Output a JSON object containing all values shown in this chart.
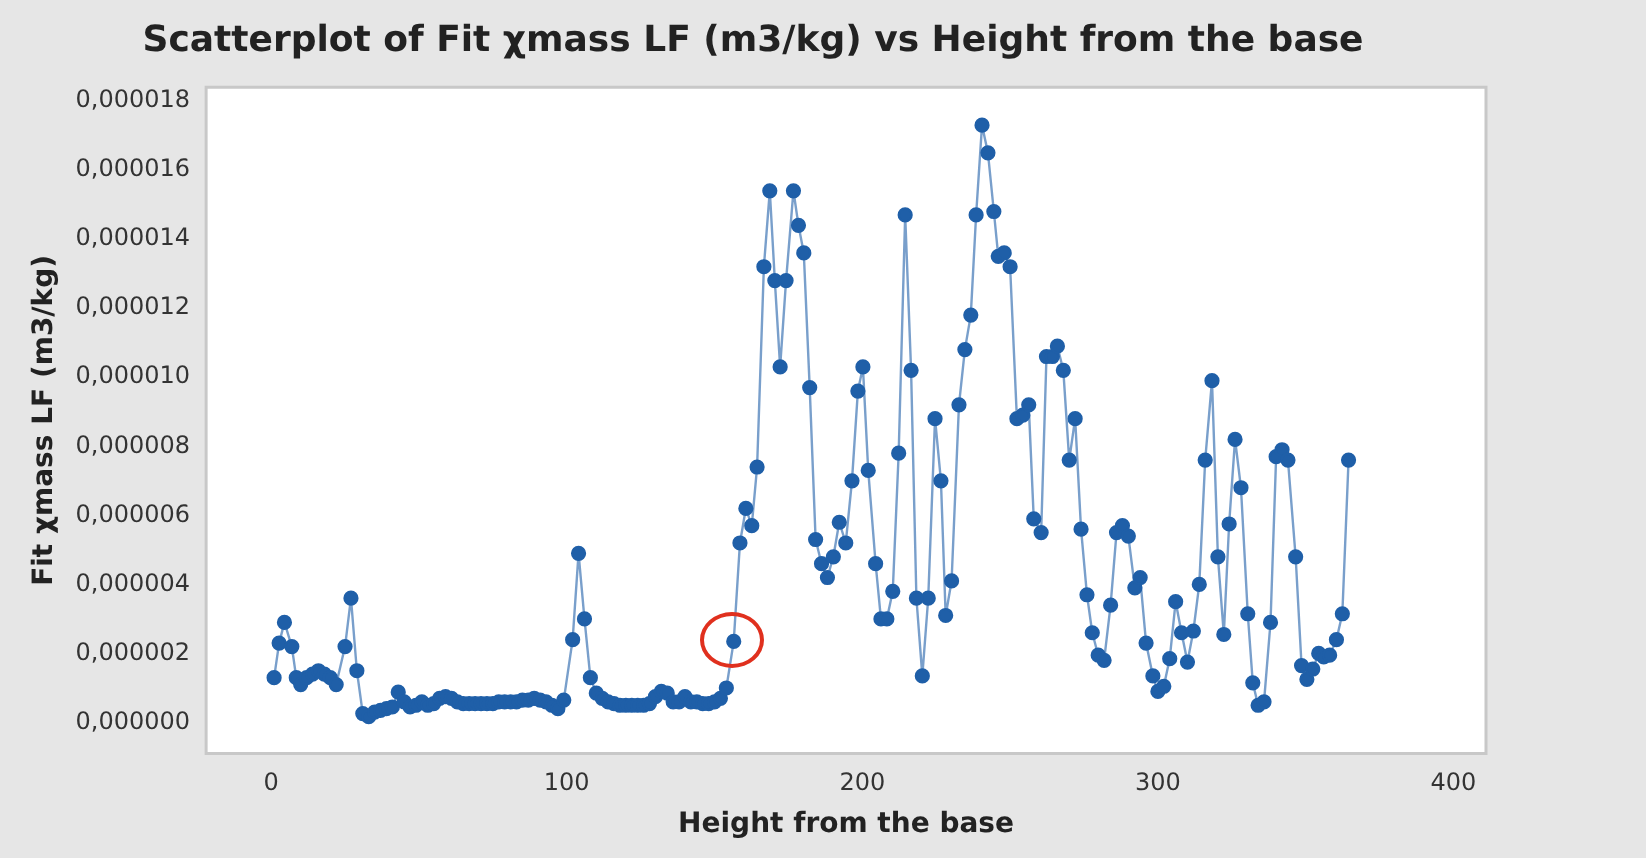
{
  "chart_data": {
    "type": "line",
    "title": "Scatterplot of Fit χmass LF (m3/kg) vs Height from the base",
    "xlabel": "Height from the base",
    "ylabel": "Fit χmass LF (m3/kg)",
    "marker": "circle",
    "line_style": "solid",
    "grid": false,
    "legend": false,
    "xlim": [
      -22,
      411
    ],
    "xticks": [
      0,
      100,
      200,
      300,
      400
    ],
    "ylim": [
      -9e-07,
      1.84e-05
    ],
    "yticks": [
      {
        "value": 0,
        "label": "0,000000"
      },
      {
        "value": 2e-06,
        "label": "0,000002"
      },
      {
        "value": 4e-06,
        "label": "0,000004"
      },
      {
        "value": 6e-06,
        "label": "0,000006"
      },
      {
        "value": 8e-06,
        "label": "0,000008"
      },
      {
        "value": 1e-05,
        "label": "0,000010"
      },
      {
        "value": 1.2e-05,
        "label": "0,000012"
      },
      {
        "value": 1.4e-05,
        "label": "0,000014"
      },
      {
        "value": 1.6e-05,
        "label": "0,000016"
      },
      {
        "value": 1.8e-05,
        "label": "0,000018"
      }
    ],
    "series": [
      {
        "color": "#1f5fa8",
        "x": [
          1,
          2.7,
          4.5,
          7,
          8.5,
          10,
          12,
          14,
          16,
          18,
          20,
          22,
          25,
          27,
          29,
          31,
          33,
          35,
          37,
          39,
          41,
          43,
          45,
          47,
          49,
          51,
          53,
          55,
          57,
          59,
          61,
          63,
          65,
          67,
          69,
          71,
          73,
          75,
          77,
          79,
          81,
          83,
          85,
          87,
          89,
          91,
          93,
          95,
          97,
          99,
          102,
          104,
          106,
          108,
          110,
          112,
          114,
          116,
          118,
          120,
          122,
          124,
          126,
          128,
          130,
          132,
          134,
          136,
          138,
          140,
          142,
          144,
          146,
          148,
          150,
          152,
          154,
          156.5,
          158.6,
          160.6,
          162.6,
          164.4,
          166.7,
          168.7,
          170.4,
          172.2,
          174.2,
          176.7,
          178.4,
          180.2,
          182.2,
          184.2,
          186.2,
          188.2,
          190.2,
          192.2,
          194.4,
          196.5,
          198.5,
          200.2,
          202,
          204.5,
          206.3,
          208.3,
          210.3,
          212.3,
          214.5,
          216.5,
          218.3,
          220.3,
          222.3,
          224.6,
          226.6,
          228.2,
          230.2,
          232.7,
          234.7,
          236.7,
          238.5,
          240.5,
          242.5,
          244.5,
          246,
          248,
          250,
          252.3,
          254.3,
          256.3,
          258,
          260.5,
          262.3,
          264.3,
          266,
          268,
          270,
          272,
          274,
          276,
          277.8,
          279.8,
          281.8,
          284,
          286,
          288,
          290,
          292.2,
          294,
          296,
          298.3,
          300,
          302,
          304,
          306,
          308,
          310,
          312,
          314,
          316,
          318.3,
          320.3,
          322.3,
          324.1,
          326.1,
          328.1,
          330.4,
          332.1,
          333.9,
          335.9,
          338.1,
          340,
          342,
          344,
          346.6,
          348.6,
          350.4,
          352.4,
          354.4,
          356.1,
          358.1,
          360.4,
          362.4,
          364.5
        ],
        "values": [
          1.3e-06,
          2.3e-06,
          2.9e-06,
          2.2e-06,
          1.3e-06,
          1.1e-06,
          1.3e-06,
          1.4e-06,
          1.5e-06,
          1.4e-06,
          1.3e-06,
          1.1e-06,
          2.2e-06,
          3.6e-06,
          1.5e-06,
          2.6e-07,
          1.7e-07,
          3e-07,
          3.5e-07,
          4e-07,
          4.5e-07,
          8.8e-07,
          6e-07,
          4.5e-07,
          5e-07,
          6e-07,
          5e-07,
          5.5e-07,
          7e-07,
          7.5e-07,
          7e-07,
          6e-07,
          5.5e-07,
          5.5e-07,
          5.5e-07,
          5.5e-07,
          5.5e-07,
          5.5e-07,
          6e-07,
          6e-07,
          6e-07,
          6e-07,
          6.5e-07,
          6.5e-07,
          7e-07,
          6.5e-07,
          6e-07,
          5e-07,
          4e-07,
          6.5e-07,
          2.4e-06,
          4.9e-06,
          3e-06,
          1.3e-06,
          8.5e-07,
          7e-07,
          6e-07,
          5.5e-07,
          5e-07,
          5e-07,
          5e-07,
          5e-07,
          5e-07,
          5.5e-07,
          7.5e-07,
          9e-07,
          8.5e-07,
          6e-07,
          6e-07,
          7.5e-07,
          6e-07,
          6e-07,
          5.5e-07,
          5.5e-07,
          6e-07,
          7e-07,
          1e-06,
          2.35e-06,
          5.2e-06,
          6.2e-06,
          5.7e-06,
          7.4e-06,
          1.32e-05,
          1.54e-05,
          1.28e-05,
          1.03e-05,
          1.28e-05,
          1.54e-05,
          1.44e-05,
          1.36e-05,
          9.7e-06,
          5.3e-06,
          4.6e-06,
          4.2e-06,
          4.8e-06,
          5.8e-06,
          5.2e-06,
          7e-06,
          9.6e-06,
          1.03e-05,
          7.3e-06,
          4.6e-06,
          3e-06,
          3e-06,
          3.8e-06,
          7.8e-06,
          1.47e-05,
          1.02e-05,
          3.6e-06,
          1.35e-06,
          3.6e-06,
          8.8e-06,
          7e-06,
          3.1e-06,
          4.1e-06,
          9.2e-06,
          1.08e-05,
          1.18e-05,
          1.47e-05,
          1.73e-05,
          1.65e-05,
          1.48e-05,
          1.35e-05,
          1.36e-05,
          1.32e-05,
          8.8e-06,
          8.9e-06,
          9.2e-06,
          5.9e-06,
          5.5e-06,
          1.06e-05,
          1.06e-05,
          1.09e-05,
          1.02e-05,
          7.6e-06,
          8.8e-06,
          5.6e-06,
          3.7e-06,
          2.6e-06,
          1.95e-06,
          1.8e-06,
          3.4e-06,
          5.5e-06,
          5.7e-06,
          5.4e-06,
          3.9e-06,
          4.2e-06,
          2.3e-06,
          1.35e-06,
          9e-07,
          1.05e-06,
          1.85e-06,
          3.5e-06,
          2.6e-06,
          1.75e-06,
          2.65e-06,
          4e-06,
          7.6e-06,
          9.9e-06,
          4.8e-06,
          2.55e-06,
          5.75e-06,
          8.2e-06,
          6.8e-06,
          3.15e-06,
          1.15e-06,
          5e-07,
          6e-07,
          2.9e-06,
          7.7e-06,
          7.9e-06,
          7.6e-06,
          4.8e-06,
          1.65e-06,
          1.25e-06,
          1.55e-06,
          2e-06,
          1.9e-06,
          1.95e-06,
          2.4e-06,
          3.15e-06,
          7.6e-06
        ]
      }
    ]
  }
}
